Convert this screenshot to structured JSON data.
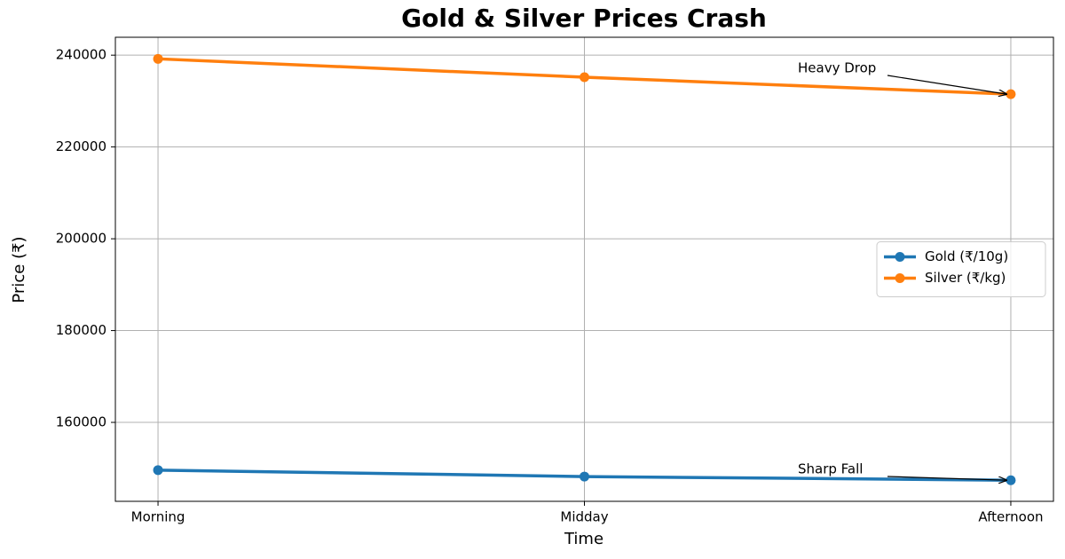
{
  "chart_data": {
    "type": "line",
    "title": "Gold & Silver Prices Crash",
    "x_label": "Time",
    "y_label": "Price (₹)",
    "categories": [
      "Morning",
      "Midday",
      "Afternoon"
    ],
    "series": [
      {
        "name": "Gold (₹/10g)",
        "color": "#1f77b4",
        "values": [
          149600,
          148200,
          147400
        ]
      },
      {
        "name": "Silver (₹/kg)",
        "color": "#ff7f0e",
        "values": [
          239200,
          235200,
          231500
        ]
      }
    ],
    "ylim": [
      142800,
      243900
    ],
    "yticks": [
      160000,
      180000,
      200000,
      220000,
      240000
    ],
    "grid": true,
    "legend": "center right",
    "annotations": [
      "Heavy Drop",
      "Sharp Fall"
    ]
  }
}
